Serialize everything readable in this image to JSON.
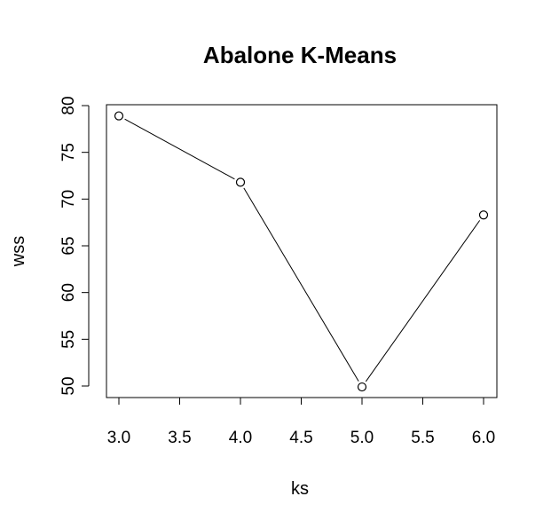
{
  "chart_data": {
    "type": "line",
    "title": "Abalone K-Means",
    "xlabel": "ks",
    "ylabel": "wss",
    "x": [
      3,
      4,
      5,
      6
    ],
    "series": [
      {
        "values": [
          78.9,
          71.8,
          49.9,
          68.3
        ]
      }
    ],
    "xlim": [
      3,
      6
    ],
    "ylim": [
      50,
      80
    ],
    "x_ticks": [
      "3.0",
      "3.5",
      "4.0",
      "4.5",
      "5.0",
      "5.5",
      "6.0"
    ],
    "y_ticks": [
      "50",
      "55",
      "60",
      "65",
      "70",
      "75",
      "80"
    ],
    "markers": "open-circle",
    "line_color": "#000000",
    "grid": false,
    "legend": false
  }
}
